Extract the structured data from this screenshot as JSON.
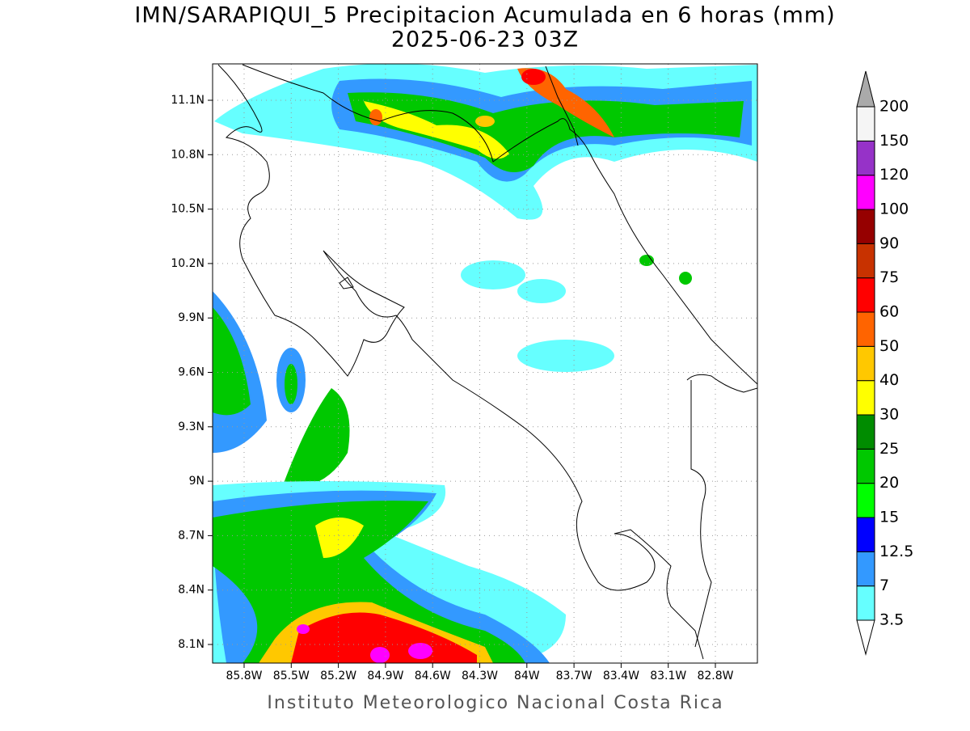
{
  "title": "IMN/SARAPIQUI_5 Precipitacion Acumulada en 6 horas (mm)",
  "subtitle": "2025-06-23 03Z",
  "footer": "Instituto Meteorologico Nacional Costa Rica",
  "map": {
    "lat_ticks": [
      "11.1N",
      "10.8N",
      "10.5N",
      "10.2N",
      "9.9N",
      "9.6N",
      "9.3N",
      "9N",
      "8.7N",
      "8.4N",
      "8.1N"
    ],
    "lon_ticks": [
      "85.8W",
      "85.5W",
      "85.2W",
      "84.9W",
      "84.6W",
      "84.3W",
      "84W",
      "83.7W",
      "83.4W",
      "83.1W",
      "82.8W"
    ]
  },
  "colorbar": {
    "levels": [
      3.5,
      7,
      12.5,
      15,
      20,
      25,
      30,
      40,
      50,
      60,
      75,
      90,
      100,
      120,
      150,
      200
    ],
    "colors": [
      "#66ffff",
      "#3399ff",
      "#0000ff",
      "#00ff00",
      "#00c800",
      "#008c00",
      "#ffff00",
      "#ffc800",
      "#ff6400",
      "#ff0000",
      "#c83200",
      "#960000",
      "#ff00ff",
      "#9632c8",
      "#f5f5f5"
    ],
    "over_color": "#aaaaaa",
    "under_color": "#ffffff"
  }
}
